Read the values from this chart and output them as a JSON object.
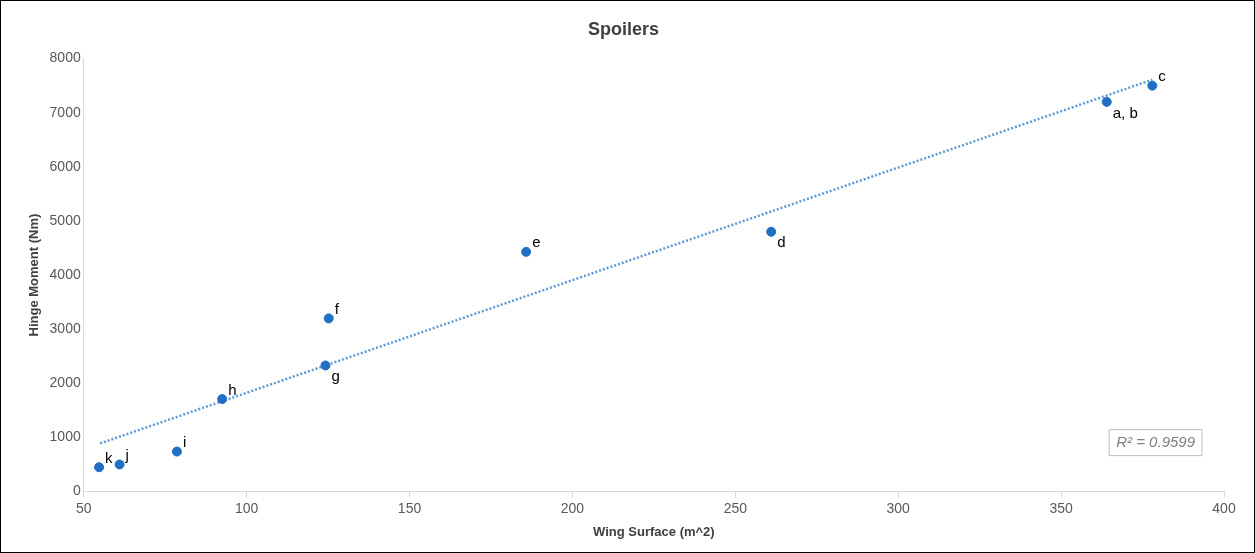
{
  "chart_data": {
    "type": "scatter",
    "title": "Spoilers",
    "xlabel": "Wing Surface (m^2)",
    "ylabel": "Hinge Moment (Nm)",
    "xlim": [
      50,
      400
    ],
    "xticks": [
      50,
      100,
      150,
      200,
      250,
      300,
      350,
      400
    ],
    "ylim": [
      0,
      8000
    ],
    "yticks": [
      0,
      1000,
      2000,
      3000,
      4000,
      5000,
      6000,
      7000,
      8000
    ],
    "grid": false,
    "legend": false,
    "marker": "circle",
    "series": [
      {
        "color": "#1f6fc5",
        "x": [
          364,
          378,
          261,
          185.8,
          125.2,
          124.2,
          92.5,
          78.6,
          61,
          54.7
        ],
        "values": [
          7200,
          7500,
          4800,
          4430,
          3200,
          2330,
          1710,
          740,
          500,
          450
        ]
      },
      {
        "type": "line",
        "color": "#5b9bd5",
        "line_style": "dotted",
        "marker": "none",
        "x": [
          55,
          378
        ],
        "values": [
          890,
          7610
        ]
      }
    ],
    "annotations": [
      {
        "text": "a, b",
        "x": 364,
        "y": 7200
      },
      {
        "text": "c",
        "x": 378,
        "y": 7500
      },
      {
        "text": "d",
        "x": 261,
        "y": 4800
      },
      {
        "text": "e",
        "x": 185.8,
        "y": 4430
      },
      {
        "text": "f",
        "x": 125.2,
        "y": 3200
      },
      {
        "text": "g",
        "x": 124.2,
        "y": 2330
      },
      {
        "text": "h",
        "x": 92.5,
        "y": 1710
      },
      {
        "text": "i",
        "x": 78.6,
        "y": 740
      },
      {
        "text": "j",
        "x": 61,
        "y": 500
      },
      {
        "text": "k",
        "x": 54.7,
        "y": 450
      },
      "R² = 0.9599"
    ]
  }
}
